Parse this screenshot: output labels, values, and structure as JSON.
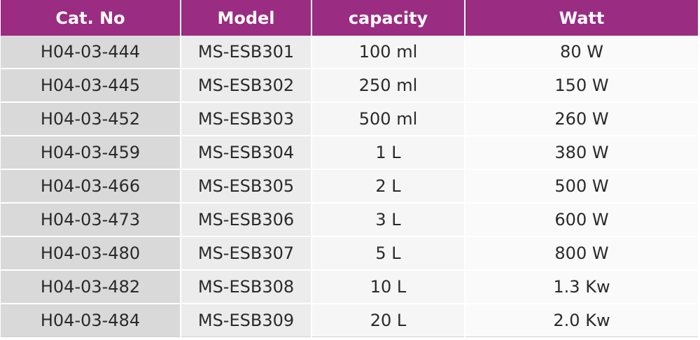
{
  "table": {
    "headers": [
      "Cat. No",
      "Model",
      "capacity",
      "Watt"
    ],
    "rows": [
      [
        "H04-03-444",
        "MS-ESB301",
        "100 ml",
        "80 W"
      ],
      [
        "H04-03-445",
        "MS-ESB302",
        "250 ml",
        "150 W"
      ],
      [
        "H04-03-452",
        "MS-ESB303",
        "500 ml",
        "260 W"
      ],
      [
        "H04-03-459",
        "MS-ESB304",
        "1 L",
        "380 W"
      ],
      [
        "H04-03-466",
        "MS-ESB305",
        "2 L",
        "500 W"
      ],
      [
        "H04-03-473",
        "MS-ESB306",
        "3 L",
        "600 W"
      ],
      [
        "H04-03-480",
        "MS-ESB307",
        "5 L",
        "800 W"
      ],
      [
        "H04-03-482",
        "MS-ESB308",
        "10 L",
        "1.3 Kw"
      ],
      [
        "H04-03-484",
        "MS-ESB309",
        "20 L",
        "2.0 Kw"
      ]
    ]
  },
  "colors": {
    "header_bg": "#9a2c82",
    "header_text": "#ffffff",
    "cat_col_bg": "#d9d9d9",
    "model_col_bg": "#ececec"
  }
}
